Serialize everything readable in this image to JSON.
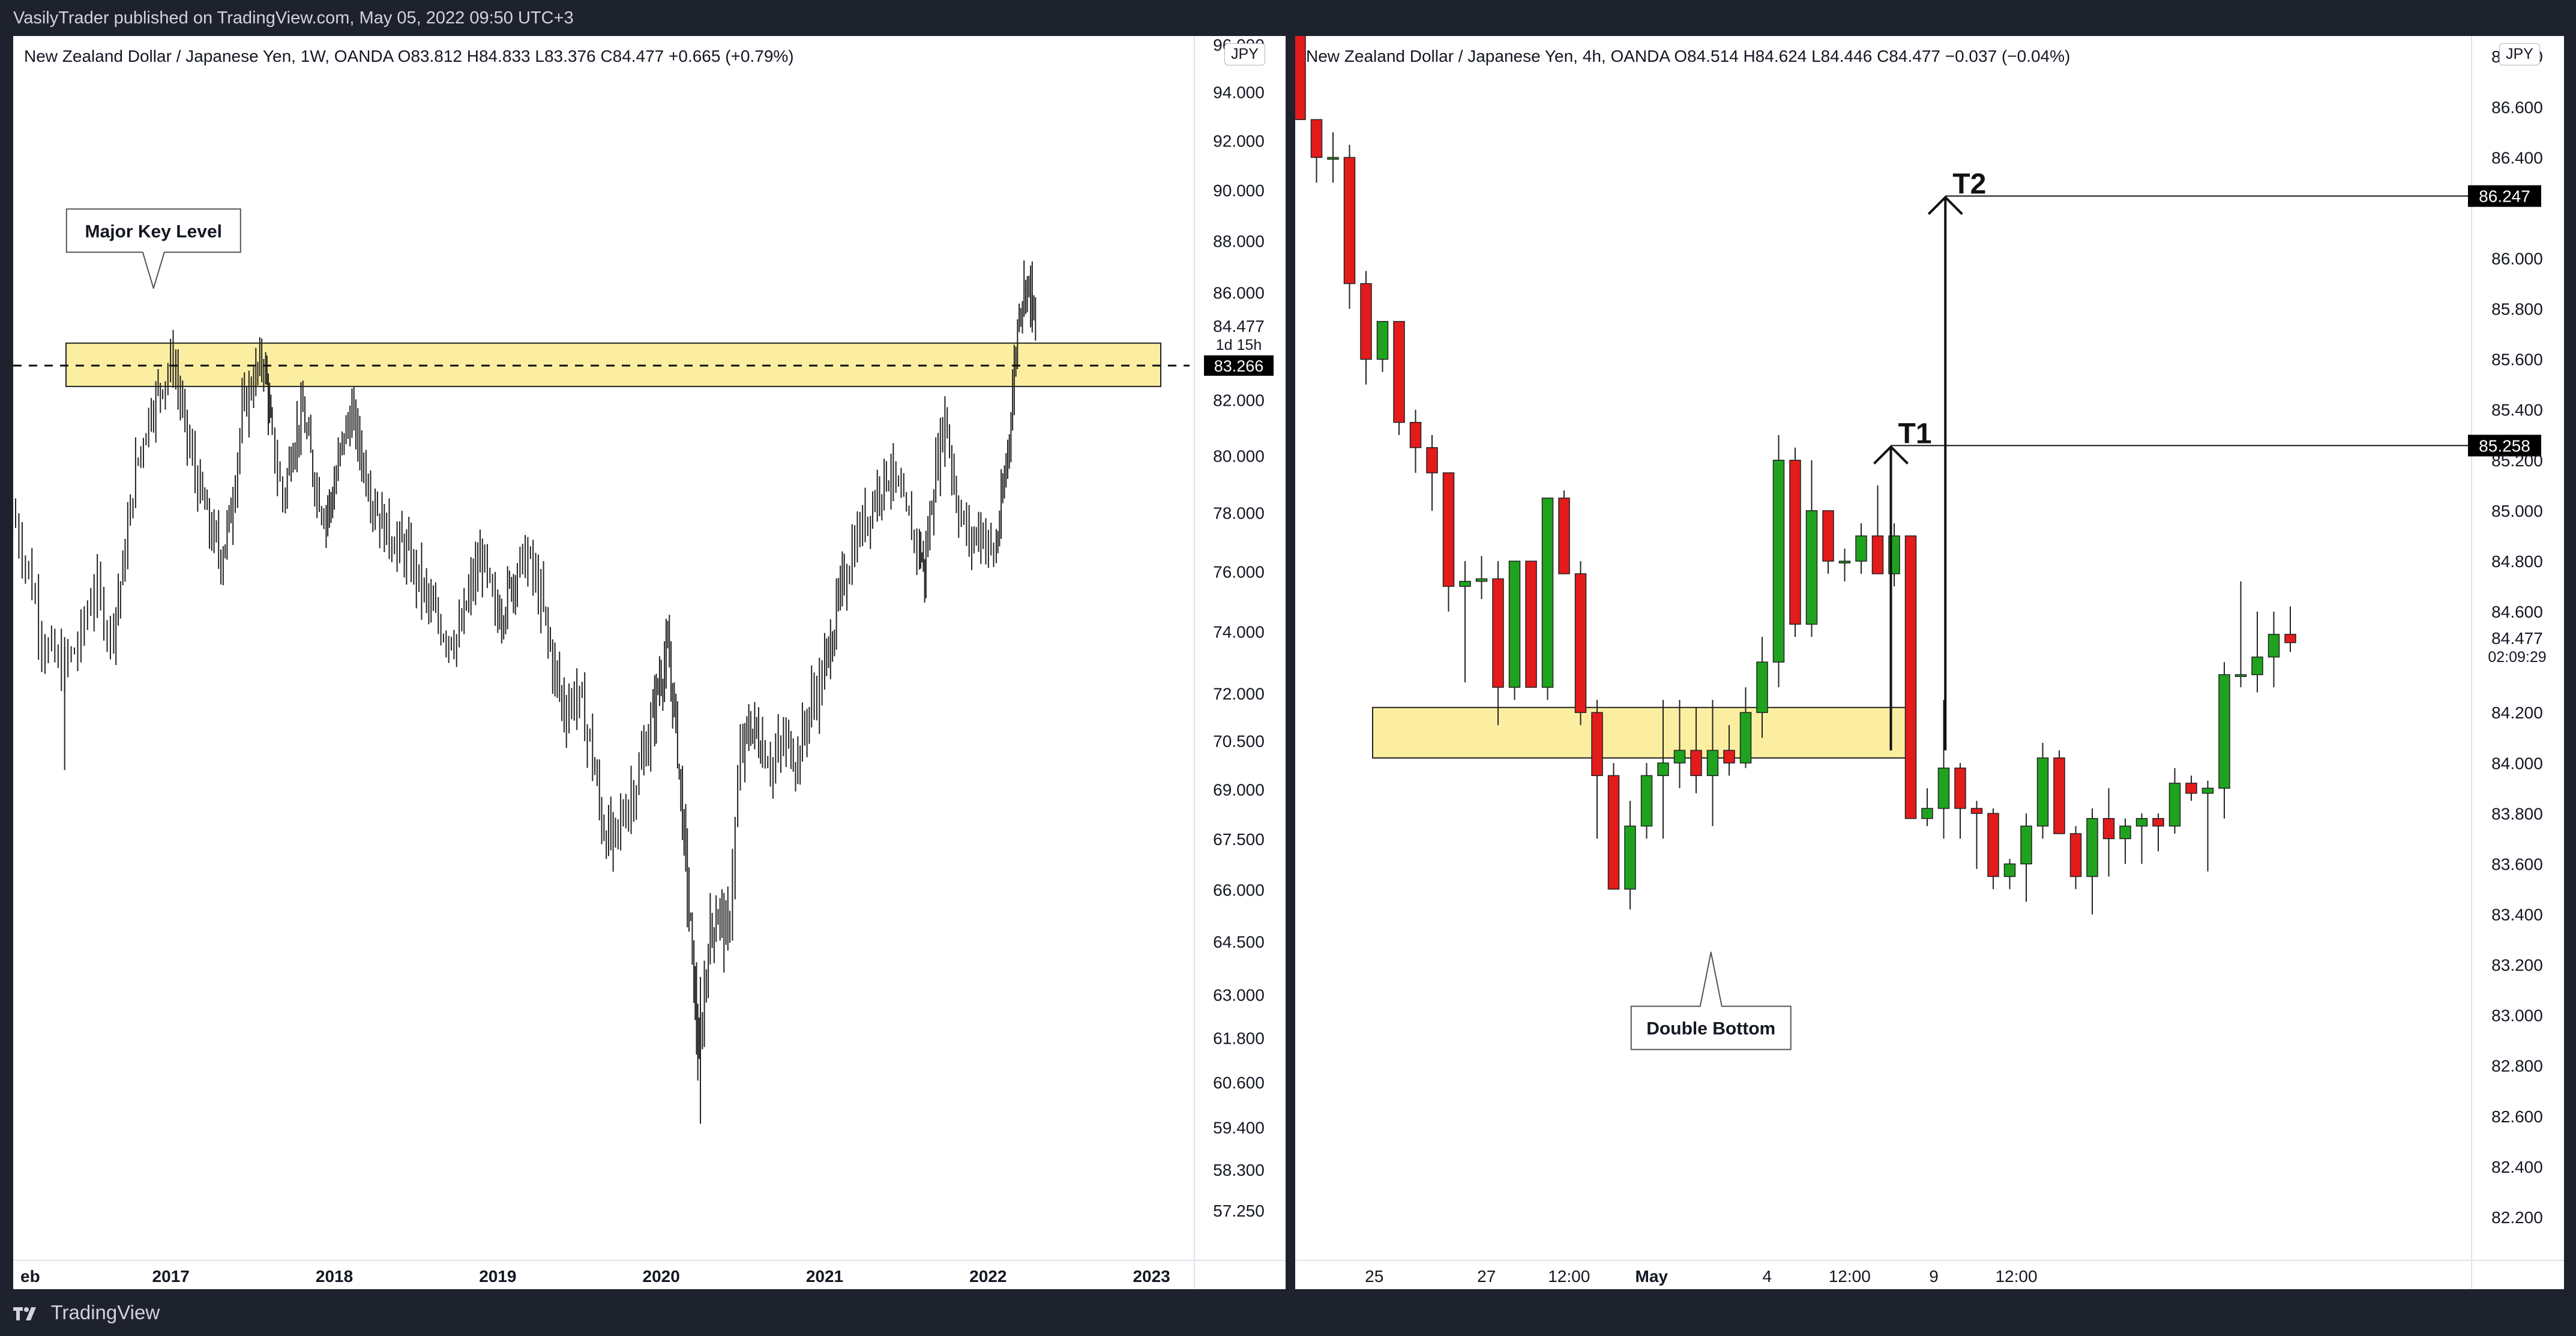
{
  "header": {
    "published_text": "VasilyTrader published on TradingView.com, May 05, 2022 09:50 UTC+3"
  },
  "footer": {
    "brand": "TradingView",
    "logo_icon": "tradingview-logo-icon"
  },
  "chart_data": [
    {
      "type": "candlestick",
      "legend": "New Zealand Dollar / Japanese Yen, 1W, OANDA  O83.812  H84.833  L83.376  C84.477  +0.665 (+0.79%)",
      "currency": "JPY",
      "y_tick_labels": [
        "94.000",
        "92.000",
        "90.000",
        "88.000",
        "86.000",
        "84.477",
        "82.000",
        "80.000",
        "78.000",
        "76.000",
        "74.000",
        "72.000",
        "70.500",
        "69.000",
        "67.500",
        "66.000",
        "64.500",
        "63.000",
        "61.800",
        "60.600",
        "59.400",
        "58.300",
        "57.250"
      ],
      "x_tick_labels": [
        "eb",
        "2017",
        "2018",
        "2019",
        "2020",
        "2021",
        "2022",
        "2023"
      ],
      "x_years": [
        2016.1,
        2017,
        2018,
        2019,
        2020,
        2021,
        2022,
        2023
      ],
      "ylim": [
        56.6,
        95.6
      ],
      "y_scale": "log",
      "last_price": {
        "value": 84.477,
        "countdown": "1d 15h"
      },
      "dashed_level": {
        "value": 83.266,
        "label": "83.266"
      },
      "zone": {
        "low": 82.5,
        "high": 84.1,
        "from": 2016.3,
        "to": 2023.1
      },
      "annotation": {
        "text": "Major Key Level",
        "anchor_x": 2016.6,
        "anchor_y": 84.0,
        "label_y": 88.4
      },
      "path": [
        [
          2016.05,
          78.0
        ],
        [
          2016.15,
          76.0
        ],
        [
          2016.25,
          73.5
        ],
        [
          2016.35,
          72.8
        ],
        [
          2016.45,
          73.5
        ],
        [
          2016.55,
          75.5
        ],
        [
          2016.65,
          74.0
        ],
        [
          2016.72,
          76.0
        ],
        [
          2016.8,
          79.5
        ],
        [
          2016.88,
          81.5
        ],
        [
          2016.95,
          82.5
        ],
        [
          2017.03,
          83.5
        ],
        [
          2017.1,
          81.0
        ],
        [
          2017.18,
          79.0
        ],
        [
          2017.25,
          77.5
        ],
        [
          2017.32,
          76.5
        ],
        [
          2017.38,
          78.0
        ],
        [
          2017.45,
          81.5
        ],
        [
          2017.52,
          82.8
        ],
        [
          2017.58,
          83.5
        ],
        [
          2017.62,
          81.0
        ],
        [
          2017.7,
          78.5
        ],
        [
          2017.76,
          80.5
        ],
        [
          2017.82,
          81.5
        ],
        [
          2017.88,
          79.5
        ],
        [
          2017.95,
          78.0
        ],
        [
          2018.0,
          78.5
        ],
        [
          2018.06,
          80.5
        ],
        [
          2018.12,
          81.5
        ],
        [
          2018.18,
          80.0
        ],
        [
          2018.25,
          78.5
        ],
        [
          2018.32,
          77.5
        ],
        [
          2018.4,
          77.0
        ],
        [
          2018.47,
          76.5
        ],
        [
          2018.55,
          75.5
        ],
        [
          2018.62,
          74.5
        ],
        [
          2018.7,
          74.0
        ],
        [
          2018.78,
          73.8
        ],
        [
          2018.85,
          75.5
        ],
        [
          2018.92,
          76.5
        ],
        [
          2019.0,
          74.5
        ],
        [
          2019.06,
          75.0
        ],
        [
          2019.12,
          76.0
        ],
        [
          2019.2,
          76.5
        ],
        [
          2019.28,
          75.0
        ],
        [
          2019.35,
          73.0
        ],
        [
          2019.42,
          71.5
        ],
        [
          2019.5,
          72.0
        ],
        [
          2019.58,
          70.5
        ],
        [
          2019.65,
          68.0
        ],
        [
          2019.72,
          67.3
        ],
        [
          2019.8,
          68.5
        ],
        [
          2019.88,
          69.5
        ],
        [
          2019.95,
          71.0
        ],
        [
          2020.0,
          72.5
        ],
        [
          2020.05,
          73.3
        ],
        [
          2020.1,
          71.0
        ],
        [
          2020.15,
          67.5
        ],
        [
          2020.2,
          64.0
        ],
        [
          2020.24,
          61.0
        ],
        [
          2020.3,
          64.5
        ],
        [
          2020.36,
          65.5
        ],
        [
          2020.42,
          64.5
        ],
        [
          2020.5,
          70.0
        ],
        [
          2020.56,
          71.0
        ],
        [
          2020.62,
          70.5
        ],
        [
          2020.7,
          69.8
        ],
        [
          2020.78,
          70.5
        ],
        [
          2020.85,
          70.0
        ],
        [
          2020.92,
          71.5
        ],
        [
          2021.0,
          72.5
        ],
        [
          2021.06,
          74.0
        ],
        [
          2021.12,
          75.5
        ],
        [
          2021.2,
          77.0
        ],
        [
          2021.28,
          78.0
        ],
        [
          2021.35,
          79.0
        ],
        [
          2021.42,
          79.5
        ],
        [
          2021.5,
          78.0
        ],
        [
          2021.58,
          77.0
        ],
        [
          2021.62,
          76.0
        ],
        [
          2021.68,
          79.0
        ],
        [
          2021.75,
          81.5
        ],
        [
          2021.82,
          78.5
        ],
        [
          2021.9,
          77.0
        ],
        [
          2021.97,
          77.5
        ],
        [
          2022.05,
          76.5
        ],
        [
          2022.1,
          78.5
        ],
        [
          2022.15,
          81.5
        ],
        [
          2022.2,
          85.5
        ],
        [
          2022.25,
          86.5
        ],
        [
          2022.3,
          84.5
        ]
      ]
    },
    {
      "type": "candlestick",
      "legend": "New Zealand Dollar / Japanese Yen, 4h, OANDA  O84.514  H84.624  L84.446  C84.477  −0.037 (−0.04%)",
      "currency": "JPY",
      "y_tick_labels": [
        "86.800",
        "86.600",
        "86.400",
        "86.200",
        "86.000",
        "85.800",
        "85.600",
        "85.400",
        "85.200",
        "85.000",
        "84.800",
        "84.600",
        "84.477",
        "84.200",
        "84.000",
        "83.800",
        "83.600",
        "83.400",
        "83.200",
        "83.000",
        "82.800",
        "82.600",
        "82.400",
        "82.200"
      ],
      "y_tick_values": [
        86.8,
        86.6,
        86.4,
        86.2,
        86.0,
        85.8,
        85.6,
        85.4,
        85.2,
        85.0,
        84.8,
        84.6,
        84.477,
        84.2,
        84.0,
        83.8,
        83.6,
        83.4,
        83.2,
        83.0,
        82.8,
        82.6,
        82.4,
        82.2
      ],
      "x_tick_labels": [
        "25",
        "27",
        "12:00",
        "May",
        "4",
        "12:00",
        "9",
        "12:00"
      ],
      "x_tick_bars": [
        4.5,
        11.3,
        16.3,
        21.3,
        28.3,
        33.3,
        38.4,
        43.4
      ],
      "ylim": [
        82.1,
        86.81
      ],
      "last_price": {
        "value": 84.477,
        "countdown": "02:09:29"
      },
      "zone": {
        "low": 84.02,
        "high": 84.22,
        "from": 4.4,
        "to": 37.0
      },
      "annotation": {
        "text": "Double Bottom",
        "anchor_x": 24.9,
        "anchor_y": 83.25,
        "label_y": 82.95
      },
      "targets": [
        {
          "label": "T1",
          "value": 85.258,
          "price_label": "85.258",
          "arrow_x": 35.8,
          "arrow_from": 84.05
        },
        {
          "label": "T2",
          "value": 86.247,
          "price_label": "86.247",
          "arrow_x": 39.1,
          "arrow_from": 84.05
        }
      ],
      "candles": [
        {
          "o": 87.0,
          "h": 87.0,
          "l": 86.55,
          "c": 86.55
        },
        {
          "o": 86.55,
          "h": 86.55,
          "l": 86.3,
          "c": 86.4
        },
        {
          "o": 86.4,
          "h": 86.5,
          "l": 86.3,
          "c": 86.4
        },
        {
          "o": 86.4,
          "h": 86.45,
          "l": 85.8,
          "c": 85.9
        },
        {
          "o": 85.9,
          "h": 85.95,
          "l": 85.5,
          "c": 85.6
        },
        {
          "o": 85.6,
          "h": 85.75,
          "l": 85.55,
          "c": 85.75
        },
        {
          "o": 85.75,
          "h": 85.75,
          "l": 85.3,
          "c": 85.35
        },
        {
          "o": 85.35,
          "h": 85.4,
          "l": 85.15,
          "c": 85.25
        },
        {
          "o": 85.25,
          "h": 85.3,
          "l": 85.0,
          "c": 85.15
        },
        {
          "o": 85.15,
          "h": 85.15,
          "l": 84.6,
          "c": 84.7
        },
        {
          "o": 84.7,
          "h": 84.8,
          "l": 84.32,
          "c": 84.72
        },
        {
          "o": 84.72,
          "h": 84.82,
          "l": 84.65,
          "c": 84.73
        },
        {
          "o": 84.73,
          "h": 84.8,
          "l": 84.15,
          "c": 84.3
        },
        {
          "o": 84.3,
          "h": 84.8,
          "l": 84.25,
          "c": 84.8
        },
        {
          "o": 84.8,
          "h": 84.8,
          "l": 84.3,
          "c": 84.3
        },
        {
          "o": 84.3,
          "h": 85.05,
          "l": 84.25,
          "c": 85.05
        },
        {
          "o": 85.05,
          "h": 85.08,
          "l": 84.75,
          "c": 84.75
        },
        {
          "o": 84.75,
          "h": 84.8,
          "l": 84.15,
          "c": 84.2
        },
        {
          "o": 84.2,
          "h": 84.25,
          "l": 83.7,
          "c": 83.95
        },
        {
          "o": 83.95,
          "h": 84.0,
          "l": 83.5,
          "c": 83.5
        },
        {
          "o": 83.5,
          "h": 83.85,
          "l": 83.42,
          "c": 83.75
        },
        {
          "o": 83.75,
          "h": 84.0,
          "l": 83.7,
          "c": 83.95
        },
        {
          "o": 83.95,
          "h": 84.25,
          "l": 83.7,
          "c": 84.0
        },
        {
          "o": 84.0,
          "h": 84.25,
          "l": 83.9,
          "c": 84.05
        },
        {
          "o": 84.05,
          "h": 84.22,
          "l": 83.88,
          "c": 83.95
        },
        {
          "o": 83.95,
          "h": 84.25,
          "l": 83.75,
          "c": 84.05
        },
        {
          "o": 84.05,
          "h": 84.15,
          "l": 83.95,
          "c": 84.0
        },
        {
          "o": 84.0,
          "h": 84.3,
          "l": 83.98,
          "c": 84.2
        },
        {
          "o": 84.2,
          "h": 84.5,
          "l": 84.1,
          "c": 84.4
        },
        {
          "o": 84.4,
          "h": 85.3,
          "l": 84.3,
          "c": 85.2
        },
        {
          "o": 85.2,
          "h": 85.25,
          "l": 84.5,
          "c": 84.55
        },
        {
          "o": 84.55,
          "h": 85.2,
          "l": 84.5,
          "c": 85.0
        },
        {
          "o": 85.0,
          "h": 85.0,
          "l": 84.75,
          "c": 84.8
        },
        {
          "o": 84.8,
          "h": 84.85,
          "l": 84.72,
          "c": 84.8
        },
        {
          "o": 84.8,
          "h": 84.95,
          "l": 84.75,
          "c": 84.9
        },
        {
          "o": 84.9,
          "h": 85.1,
          "l": 84.75,
          "c": 84.75
        },
        {
          "o": 84.75,
          "h": 84.95,
          "l": 84.7,
          "c": 84.9
        },
        {
          "o": 84.9,
          "h": 84.9,
          "l": 83.78,
          "c": 83.78
        },
        {
          "o": 83.78,
          "h": 83.9,
          "l": 83.75,
          "c": 83.82
        },
        {
          "o": 83.82,
          "h": 84.25,
          "l": 83.7,
          "c": 83.98
        },
        {
          "o": 83.98,
          "h": 84.0,
          "l": 83.7,
          "c": 83.82
        },
        {
          "o": 83.82,
          "h": 83.85,
          "l": 83.58,
          "c": 83.8
        },
        {
          "o": 83.8,
          "h": 83.82,
          "l": 83.5,
          "c": 83.55
        },
        {
          "o": 83.55,
          "h": 83.62,
          "l": 83.5,
          "c": 83.6
        },
        {
          "o": 83.6,
          "h": 83.8,
          "l": 83.45,
          "c": 83.75
        },
        {
          "o": 83.75,
          "h": 84.08,
          "l": 83.7,
          "c": 84.02
        },
        {
          "o": 84.02,
          "h": 84.05,
          "l": 83.72,
          "c": 83.72
        },
        {
          "o": 83.72,
          "h": 83.75,
          "l": 83.5,
          "c": 83.55
        },
        {
          "o": 83.55,
          "h": 83.82,
          "l": 83.4,
          "c": 83.78
        },
        {
          "o": 83.78,
          "h": 83.9,
          "l": 83.55,
          "c": 83.7
        },
        {
          "o": 83.7,
          "h": 83.78,
          "l": 83.6,
          "c": 83.75
        },
        {
          "o": 83.75,
          "h": 83.8,
          "l": 83.6,
          "c": 83.78
        },
        {
          "o": 83.78,
          "h": 83.8,
          "l": 83.65,
          "c": 83.75
        },
        {
          "o": 83.75,
          "h": 83.98,
          "l": 83.72,
          "c": 83.92
        },
        {
          "o": 83.92,
          "h": 83.95,
          "l": 83.85,
          "c": 83.88
        },
        {
          "o": 83.88,
          "h": 83.93,
          "l": 83.57,
          "c": 83.9
        },
        {
          "o": 83.9,
          "h": 84.4,
          "l": 83.78,
          "c": 84.35
        },
        {
          "o": 84.35,
          "h": 84.72,
          "l": 84.3,
          "c": 84.35
        },
        {
          "o": 84.35,
          "h": 84.6,
          "l": 84.28,
          "c": 84.42
        },
        {
          "o": 84.42,
          "h": 84.6,
          "l": 84.3,
          "c": 84.51
        },
        {
          "o": 84.51,
          "h": 84.62,
          "l": 84.44,
          "c": 84.477
        }
      ]
    }
  ]
}
